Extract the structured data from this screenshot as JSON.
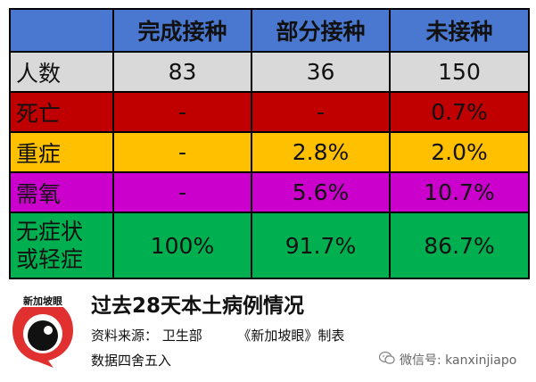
{
  "table": {
    "headers": [
      "",
      "完成接种",
      "部分接种",
      "未接种"
    ],
    "rows": [
      {
        "label": "人数",
        "cells": [
          "83",
          "36",
          "150"
        ]
      },
      {
        "label": "死亡",
        "cells": [
          "-",
          "-",
          "0.7%"
        ]
      },
      {
        "label": "重症",
        "cells": [
          "-",
          "2.8%",
          "2.0%"
        ]
      },
      {
        "label": "需氧",
        "cells": [
          "-",
          "5.6%",
          "10.7%"
        ]
      },
      {
        "label_line1": "无症状",
        "label_line2": "或轻症",
        "cells": [
          "100%",
          "91.7%",
          "86.7%"
        ]
      }
    ]
  },
  "colors": {
    "header": "#4a78d0",
    "count": "#d9d9d9",
    "death": "#c00000",
    "severe": "#ffc000",
    "oxygen": "#cc00cc",
    "mild": "#00b050"
  },
  "footer": {
    "logo_text": "新加坡眼",
    "title": "过去28天本土病例情况",
    "source_label": "资料来源：",
    "source_value": "卫生部",
    "made_by": "《新加坡眼》制表",
    "note": "数据四舍五入",
    "wechat": "微信号: kanxinjiapo"
  }
}
